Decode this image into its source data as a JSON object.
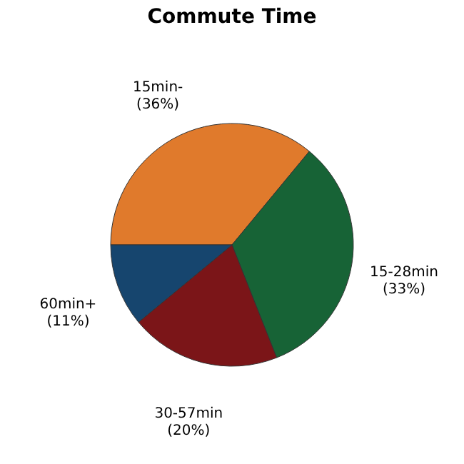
{
  "chart_data": {
    "type": "pie",
    "title": "Commute Time",
    "categories": [
      "15min-",
      "15-28min",
      "30-57min",
      "60min+"
    ],
    "values": [
      36,
      33,
      20,
      11
    ],
    "value_labels": [
      "(36%)",
      "(33%)",
      "(20%)",
      "(11%)"
    ],
    "colors": [
      "#e07a2c",
      "#176336",
      "#7b1518",
      "#16456e"
    ],
    "legend": false
  }
}
